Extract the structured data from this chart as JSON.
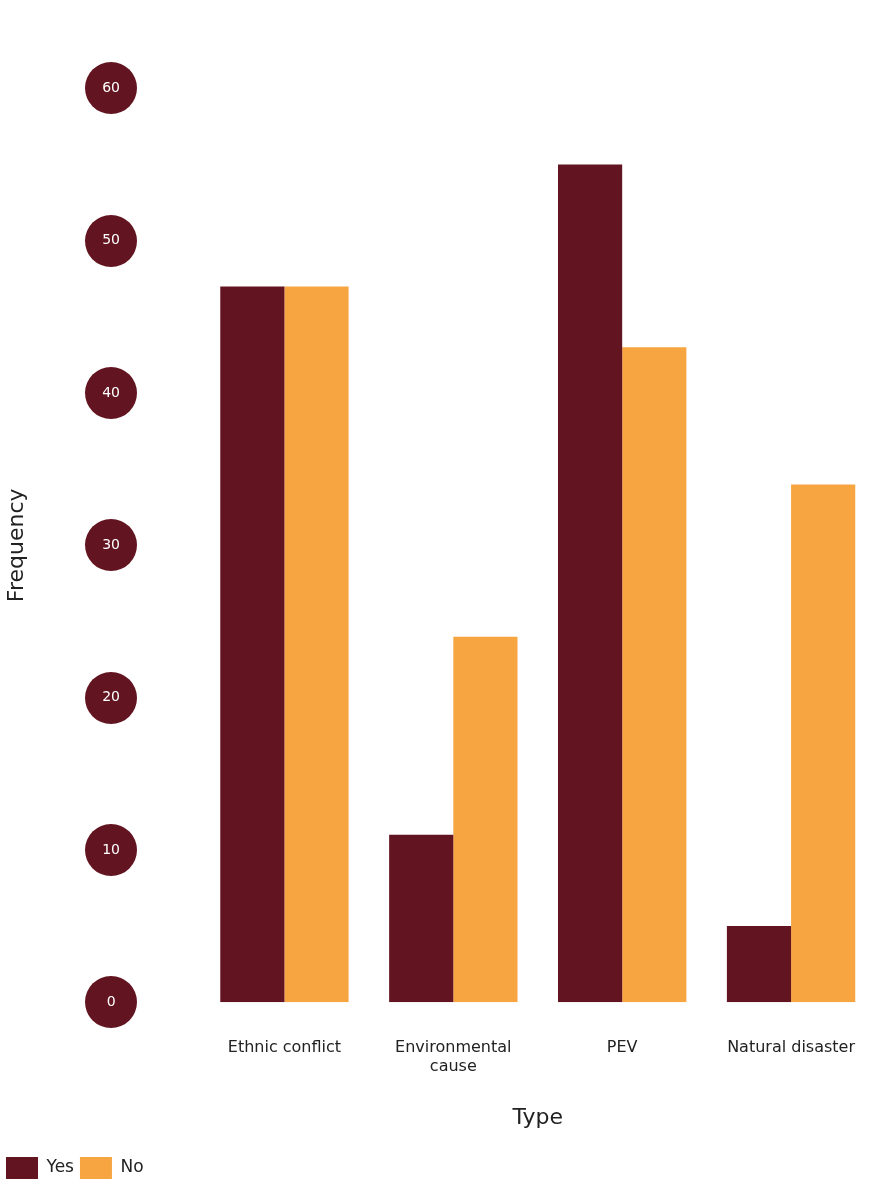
{
  "chart_data": {
    "type": "bar",
    "xlabel": "Type",
    "ylabel": "Frequency",
    "categories": [
      "Ethnic conflict",
      "Environmental cause",
      "PEV",
      "Natural disaster"
    ],
    "series": [
      {
        "name": "Yes",
        "color": "#621420",
        "values": [
          47,
          11,
          55,
          5
        ]
      },
      {
        "name": "No",
        "color": "#f7a541",
        "values": [
          47,
          24,
          43,
          34
        ]
      }
    ],
    "ylim": [
      0,
      60
    ],
    "yticks": [
      0,
      10,
      20,
      30,
      40,
      50,
      60
    ],
    "grid": false,
    "legend": "bottom"
  }
}
